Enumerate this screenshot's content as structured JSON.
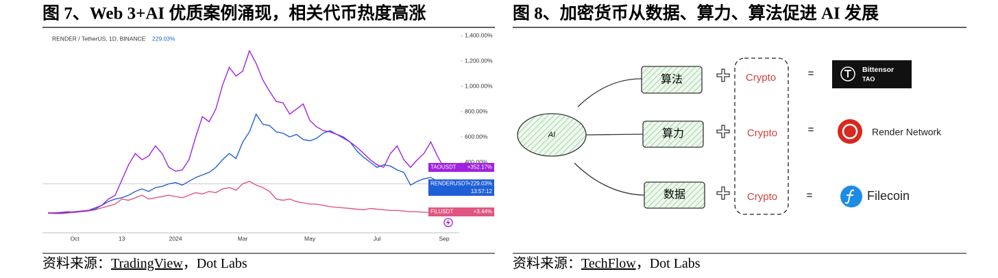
{
  "figure_7": {
    "title": "图 7、Web 3+AI 优质案例涌现，相关代币热度高涨",
    "source_label": "资料来源：",
    "source": "TradingView",
    "source_rest": "，Dot Labs"
  },
  "chart_data": {
    "type": "line",
    "header": "RENDER / TetherUS, 1D, BINANCE",
    "header_value": "229.03%",
    "categories": [
      null,
      null,
      null,
      null,
      "Oct",
      null,
      null,
      null,
      null,
      null,
      null,
      "13",
      null,
      null,
      null,
      null,
      null,
      null,
      null,
      "2024",
      null,
      null,
      null,
      null,
      null,
      null,
      null,
      null,
      null,
      "Mar",
      null,
      null,
      null,
      null,
      null,
      null,
      null,
      null,
      null,
      "May",
      null,
      null,
      null,
      null,
      null,
      null,
      null,
      null,
      null,
      "Jul",
      null,
      null,
      null,
      null,
      null,
      null,
      null,
      null,
      null,
      "Sep"
    ],
    "series": [
      {
        "name": "TAOUSDT",
        "color": "#a021e0",
        "last_label": "+352.17%",
        "values": [
          0,
          0,
          5,
          10,
          5,
          15,
          20,
          40,
          60,
          110,
          140,
          260,
          380,
          470,
          420,
          450,
          530,
          470,
          360,
          330,
          340,
          420,
          600,
          760,
          720,
          820,
          1010,
          1150,
          1080,
          1120,
          1280,
          1180,
          1050,
          960,
          880,
          870,
          780,
          820,
          860,
          730,
          680,
          650,
          640,
          620,
          590,
          560,
          520,
          470,
          420,
          380,
          360,
          470,
          530,
          420,
          360,
          420,
          470,
          560,
          450,
          352.17
        ]
      },
      {
        "name": "RENDERUSDT",
        "color": "#1f5fd6",
        "last_label": "+229.03%",
        "values": [
          0,
          0,
          0,
          5,
          10,
          15,
          20,
          30,
          60,
          90,
          110,
          120,
          140,
          170,
          190,
          170,
          200,
          210,
          230,
          240,
          220,
          250,
          280,
          300,
          320,
          360,
          420,
          470,
          430,
          560,
          640,
          780,
          700,
          690,
          640,
          630,
          600,
          620,
          580,
          570,
          590,
          630,
          650,
          620,
          600,
          560,
          490,
          440,
          400,
          360,
          380,
          370,
          340,
          320,
          220,
          250,
          270,
          280,
          250,
          229.03
        ]
      },
      {
        "name": "FILUSDT",
        "color": "#e0557f",
        "last_label": "+3.44%",
        "values": [
          0,
          -5,
          -5,
          0,
          5,
          10,
          15,
          25,
          40,
          55,
          70,
          110,
          100,
          120,
          140,
          110,
          120,
          130,
          140,
          130,
          120,
          140,
          160,
          150,
          170,
          160,
          190,
          200,
          180,
          230,
          250,
          220,
          200,
          170,
          110,
          100,
          110,
          90,
          80,
          70,
          70,
          60,
          50,
          45,
          40,
          35,
          30,
          25,
          35,
          30,
          25,
          20,
          20,
          15,
          10,
          10,
          5,
          5,
          5,
          3.44
        ]
      }
    ],
    "countdown": "13:57:12",
    "ylim": [
      -160,
      1440
    ],
    "yticks": [
      {
        "value": 400,
        "label": "400.00%"
      },
      {
        "value": 600,
        "label": "600.00%"
      },
      {
        "value": 800,
        "label": "800.00%"
      },
      {
        "value": 1000,
        "label": "1,000.00%"
      },
      {
        "value": 1200,
        "label": "1,200.00%"
      },
      {
        "value": 1400,
        "label": "1,400.00%"
      }
    ],
    "grid": false
  },
  "figure_8": {
    "title": "图 8、加密货币从数据、算力、算法促进 AI 发展",
    "source_label": "资料来源：",
    "source": "TechFlow",
    "source_rest": "，Dot Labs",
    "center": "AI",
    "equals": "=",
    "rows": [
      {
        "input": "算法",
        "crypto": "Crypto",
        "project": "Bittensor",
        "project_sub": "TAO"
      },
      {
        "input": "算力",
        "crypto": "Crypto",
        "project": "Render Network"
      },
      {
        "input": "数据",
        "crypto": "Crypto",
        "project": "Filecoin"
      }
    ]
  }
}
